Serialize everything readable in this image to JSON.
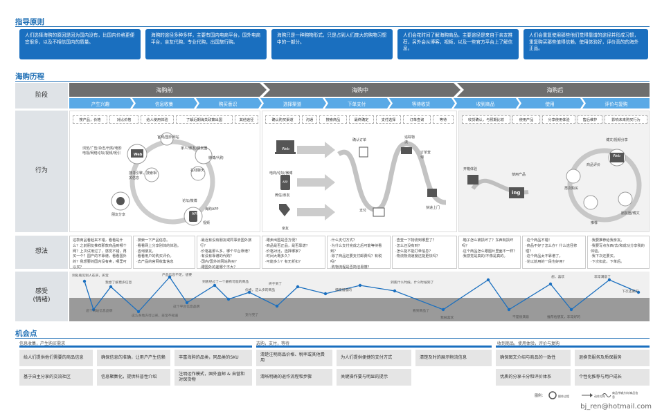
{
  "section1_title": "指导原则",
  "principles": [
    "人们选择海购的原因是因为国内没有，比国内价格更便宜很多，以及不相信国内的质量。",
    "海购的途径多种多样，主要有国内电商平台，国外电商平台，亲友代购，专业代购，出国旅行购。",
    "海购只是一种购物形式，只是占到人们庞大的购物习惯中的一部分。",
    "人们会花时间了解海购商品，主要途径是来自于亲友推荐，另外会从博客，视频，以及一些官方平台上了解信息。",
    "人们会重复使用那些他们觉得靠谱的途径并形成习惯，重复购买那些值得信赖，使用体验好，评价高的的海外正品。"
  ],
  "section2_title": "海购历程",
  "rows": {
    "stage": "阶段",
    "behavior": "行为",
    "thoughts": "想法",
    "feelings": "感受\n(情绪)"
  },
  "stages": [
    "海购前",
    "海购中",
    "海购后"
  ],
  "substages": [
    "产生兴趣",
    "信息收集",
    "购买意识",
    "选择渠道",
    "下单支付",
    "等待收货",
    "收到商品",
    "使用",
    "评价与复购"
  ],
  "tags": {
    "pre": [
      "搜产品，价格",
      "对比价格",
      "给人使用体验",
      "了解近期海关政策出国",
      "其他途径"
    ],
    "mid": [
      "确认购买渠道",
      "沟通",
      "搜索商品",
      "最终确定",
      "支付选择",
      "订单查询",
      "等待"
    ],
    "post": [
      "收货确认，与预期比较",
      "使用产品",
      "分享使用体验",
      "售后维护",
      "影响未来购买行为"
    ]
  },
  "diagram_labels": {
    "web": "Web",
    "app": "APP",
    "browse": "浏览/广告/杂志/代购/电影电视/网络论坛/视频/呢引",
    "official": "官网/国外网站",
    "friends": "家人/亲友/朋友圈",
    "weibo": "微博/代购",
    "search": "搜寻引擎，搜索相关信息",
    "forum": "论坛/微博",
    "online_chat": "在线聊天",
    "app_shop": "海购APP",
    "video": "视频",
    "word_mouth": "朋友分享",
    "ecom": "电商/论坛/微博",
    "wx": "微信/亲友",
    "phone": "亲友",
    "confirm": "确认订单",
    "pay": "支付",
    "logistics": "追踪物流",
    "order": "订单查询",
    "express": "快递上门",
    "unbox": "开箱体验",
    "use": "使用产品",
    "ing": "ing",
    "rebuy": "再次购买",
    "reco": "推荐",
    "review": "商品评价",
    "blog": "博文/视频分享",
    "friends_blog": "朋友圈/博文"
  },
  "thoughts": [
    "这款商品看起来不错，看看是什么？之前朋友推荐那款商品到哪个网？上次试用过了，感觉不错，再买一个？国产的不靠谱，看看国外的？我想要的国内没有卖，哪里可以买？",
    "·搜索一下产品信息。\n·看看网上分享别体的体验。\n·咨询朋友。\n·看看用户的购买评价。\n·去产品的官网收集信息",
    "·最近有没有朋友或同事去国外旅行？\n·价格差那么多，哪个平台靠谱？\n·有没有靠谱的代购？\n·国内/国外的网站购买？\n·跟国外的差哪个不大？",
    "·跟卖出国是否方便？\n·商品是否正品，是否靠谱？\n·价格对比，选择哪家？\n·时间大概多久？\n·可能多少？有无折扣？",
    "·什么支付方式？\n·为什么支付完成之后可能等待看到？\n·除了商品还要支付邮费吗？有税吗？\n·购物流程是否简洁易懂？",
    "·查查一下物流到哪里了？\n·怎么还没有到？\n·怎么能不能打单信息？\n·物流物流速度还能更快吗？",
    "·箱子怎么被损坏了？东西有损坏吗？\n·这个商品怎么跟图片里面不一样？\n·我感觉是真的/不像是真的。",
    "·这个商品不错！\n·商品不好了怎么办？什么途径修理？\n·这个商品太不靠谱了。\n·论以前用的一段也好用？",
    "·我要推荐给我亲友。\n·我要写点东西/去/和成功分享我的体验。\n·我下次还要买。\n·下次如此，下单后。"
  ],
  "feel_labels": [
    "到处看见别人在买，买宝",
    "我想了解更多信息",
    "这个网站信息品牌",
    "这么多地方可以买，非常不知道",
    "产品信息不足，想要",
    "这个平台信息品牌",
    "到底经过了一个最有可能的商品",
    "价格，这么多的商品",
    "支付完了",
    "终于到了",
    "慢慢慢慢的",
    "到底什么时候，什么时候到了",
    "看到商品了",
    "我很喜欢",
    "不是很满意",
    "推荐给朋友，非常好的",
    "想，喜欢",
    "非常满意了",
    "下次还要买"
  ],
  "section3_title": "机会点",
  "opp_heads": [
    "信息收集，产生购买需求",
    "选购，支付，等待",
    "收到商品，使用体验，评价与复购"
  ],
  "opps": {
    "row1": [
      "给人们提供他们需要的商品信息",
      "确保信息的准确，让用户产生信赖",
      "丰富海购的品类，同品类的SKU",
      "清楚注明商品价格、税率或其他费用",
      "为人们提供便捷的支付方式",
      "清楚及时的展示物流信息",
      "确保图文介绍与商品的一致性",
      "退换货服务及质保服务"
    ],
    "row2": [
      "基于自主分享的交流社区",
      "信息聚集化，提供科普性介绍",
      "注明运作模式，国外直邮 & 自营和对保货物",
      "清晰明确的退作流程和步骤",
      "关键操作要与明显的提示",
      "优质的分享卡分和评价体系",
      "个性化推荐与用户成长"
    ]
  },
  "legend": {
    "title": "图例：",
    "a": "操作过程",
    "b": "动作方向",
    "c": "商品传输方向/商品信息"
  },
  "footer": "bj_ren@hotmail.com",
  "colors": {
    "blue": "#1a6fbf",
    "light": "#59a9e6",
    "gray": "#6e6e6e"
  }
}
